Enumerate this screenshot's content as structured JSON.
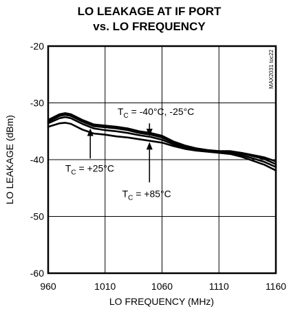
{
  "chart_data": {
    "type": "line",
    "title_lines": [
      "LO LEAKAGE AT IF PORT",
      "vs. LO FREQUENCY"
    ],
    "xlabel": "LO FREQUENCY (MHz)",
    "ylabel": "LO LEAKAGE (dBm)",
    "xlim": [
      960,
      1160
    ],
    "ylim": [
      -60,
      -20
    ],
    "xticks": [
      960,
      1010,
      1060,
      1110,
      1160
    ],
    "yticks": [
      -20,
      -30,
      -40,
      -50,
      -60
    ],
    "grid": true,
    "side_label": "MAX2031 toc22",
    "series": [
      {
        "temperature": "-40°C",
        "x": [
          960,
          970,
          975,
          980,
          990,
          1000,
          1010,
          1020,
          1030,
          1040,
          1050,
          1060,
          1070,
          1080,
          1090,
          1100,
          1110,
          1120,
          1130,
          1140,
          1150,
          1160
        ],
        "y": [
          -33.0,
          -32.0,
          -31.8,
          -32.0,
          -33.0,
          -33.8,
          -34.0,
          -34.2,
          -34.5,
          -35.0,
          -35.3,
          -35.8,
          -36.8,
          -37.5,
          -38.0,
          -38.3,
          -38.5,
          -38.5,
          -38.8,
          -39.2,
          -39.6,
          -40.3
        ]
      },
      {
        "temperature": "-25°C",
        "x": [
          960,
          970,
          975,
          980,
          990,
          1000,
          1010,
          1020,
          1030,
          1040,
          1050,
          1060,
          1070,
          1080,
          1090,
          1100,
          1110,
          1120,
          1130,
          1140,
          1150,
          1160
        ],
        "y": [
          -33.3,
          -32.3,
          -32.1,
          -32.3,
          -33.3,
          -34.1,
          -34.3,
          -34.5,
          -34.8,
          -35.3,
          -35.6,
          -36.1,
          -37.0,
          -37.7,
          -38.1,
          -38.4,
          -38.6,
          -38.6,
          -38.9,
          -39.4,
          -39.9,
          -40.8
        ]
      },
      {
        "temperature": "+25°C",
        "x": [
          960,
          970,
          975,
          980,
          990,
          1000,
          1010,
          1020,
          1030,
          1040,
          1050,
          1060,
          1070,
          1080,
          1090,
          1100,
          1110,
          1120,
          1130,
          1140,
          1150,
          1160
        ],
        "y": [
          -33.6,
          -32.7,
          -32.5,
          -32.7,
          -33.7,
          -34.5,
          -34.8,
          -35.0,
          -35.3,
          -35.7,
          -36.0,
          -36.5,
          -37.3,
          -37.9,
          -38.2,
          -38.5,
          -38.7,
          -38.8,
          -39.2,
          -39.8,
          -40.4,
          -41.3
        ]
      },
      {
        "temperature": "+85°C",
        "x": [
          960,
          970,
          975,
          980,
          990,
          1000,
          1010,
          1020,
          1030,
          1040,
          1050,
          1060,
          1070,
          1080,
          1090,
          1100,
          1110,
          1120,
          1130,
          1140,
          1150,
          1160
        ],
        "y": [
          -34.2,
          -33.6,
          -33.5,
          -33.7,
          -34.7,
          -35.4,
          -35.6,
          -35.9,
          -36.1,
          -36.4,
          -36.7,
          -37.0,
          -37.6,
          -38.1,
          -38.4,
          -38.6,
          -38.8,
          -39.0,
          -39.5,
          -40.2,
          -40.9,
          -41.9
        ]
      }
    ],
    "annotations": [
      {
        "prefix": "T",
        "sub": "C",
        "text": " = -40°C, -25°C",
        "arrow_x": 1049,
        "arrow_y_from": -33.6,
        "arrow_y_to": -35.9,
        "label_x": 1021,
        "label_y": -32.1
      },
      {
        "prefix": "T",
        "sub": "C",
        "text": " = +25°C",
        "arrow_x": 997,
        "arrow_y_from": -39.8,
        "arrow_y_to": -34.5,
        "label_x": 975,
        "label_y": -42.1
      },
      {
        "prefix": "T",
        "sub": "C",
        "text": " = +85°C",
        "arrow_x": 1049,
        "arrow_y_from": -44.0,
        "arrow_y_to": -36.9,
        "label_x": 1025,
        "label_y": -46.6
      }
    ]
  }
}
